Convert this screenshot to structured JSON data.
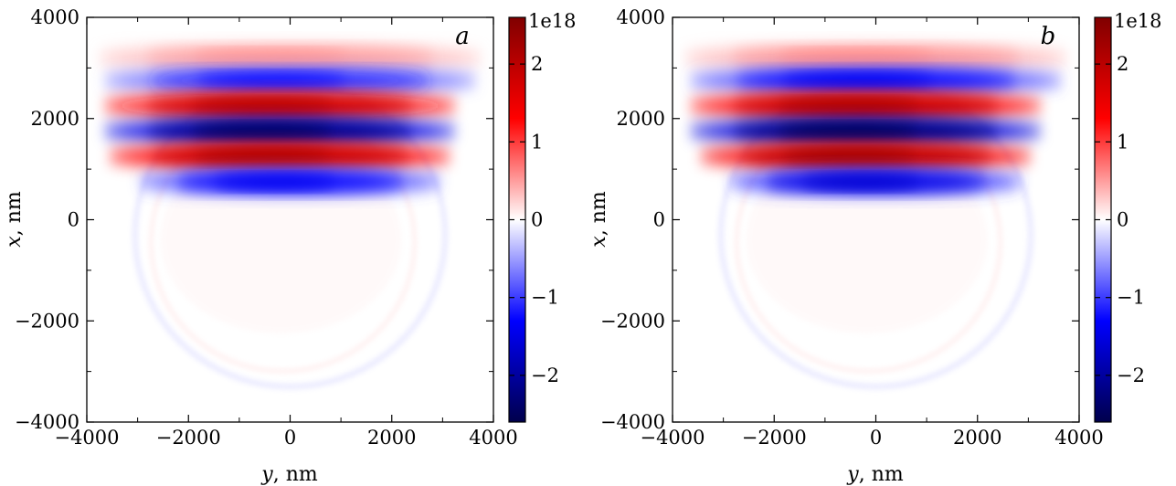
{
  "chart_data": [
    {
      "type": "heatmap",
      "panel_label": "a",
      "xlabel_var": "y",
      "xlabel_unit": ", nm",
      "ylabel_var": "x",
      "ylabel_unit": ", nm",
      "xlim": [
        -4000,
        4000
      ],
      "ylim": [
        -4000,
        4000
      ],
      "x_ticks": [
        -4000,
        -2000,
        0,
        2000,
        4000
      ],
      "y_ticks": [
        -4000,
        -2000,
        0,
        2000,
        4000
      ],
      "x_tick_labels": [
        "−4000",
        "−2000",
        "0",
        "2000",
        "4000"
      ],
      "y_tick_labels": [
        "−4000",
        "−2000",
        "0",
        "2000",
        "4000"
      ],
      "colormap": "seismic",
      "colorbar": {
        "multiplier_label": "1e18",
        "range": [
          -2.6,
          2.6
        ],
        "ticks": [
          -2,
          -1,
          0,
          1,
          2
        ],
        "tick_labels": [
          "−2",
          "−1",
          "0",
          "1",
          "2"
        ]
      },
      "bands": [
        {
          "x": 3200,
          "amplitude": 0.5,
          "y_center": 0,
          "half_width": 3800
        },
        {
          "x": 2750,
          "amplitude": -1.1,
          "y_center": 0,
          "half_width": 3700
        },
        {
          "x": 2250,
          "amplitude": 1.9,
          "y_center": -200,
          "half_width": 3500
        },
        {
          "x": 1750,
          "amplitude": -2.3,
          "y_center": -200,
          "half_width": 3500
        },
        {
          "x": 1250,
          "amplitude": 2.0,
          "y_center": -200,
          "half_width": 3400
        },
        {
          "x": 750,
          "amplitude": -1.3,
          "y_center": 0,
          "half_width": 3000
        }
      ],
      "ring": {
        "y_center": 0,
        "x_center": -300,
        "radius_y": 3050,
        "radius_x": 3000,
        "amplitude": 0.15
      }
    },
    {
      "type": "heatmap",
      "panel_label": "b",
      "xlabel_var": "y",
      "xlabel_unit": ", nm",
      "ylabel_var": "x",
      "ylabel_unit": ", nm",
      "xlim": [
        -4000,
        4000
      ],
      "ylim": [
        -4000,
        4000
      ],
      "x_ticks": [
        -4000,
        -2000,
        0,
        2000,
        4000
      ],
      "y_ticks": [
        -4000,
        -2000,
        0,
        2000,
        4000
      ],
      "x_tick_labels": [
        "−4000",
        "−2000",
        "0",
        "2000",
        "4000"
      ],
      "y_tick_labels": [
        "−4000",
        "−2000",
        "0",
        "2000",
        "4000"
      ],
      "colormap": "seismic",
      "colorbar": {
        "multiplier_label": "1e18",
        "range": [
          -2.6,
          2.6
        ],
        "ticks": [
          -2,
          -1,
          0,
          1,
          2
        ],
        "tick_labels": [
          "−2",
          "−1",
          "0",
          "1",
          "2"
        ]
      },
      "bands": [
        {
          "x": 3200,
          "amplitude": 0.55,
          "y_center": 0,
          "half_width": 3800
        },
        {
          "x": 2750,
          "amplitude": -1.3,
          "y_center": 0,
          "half_width": 3700
        },
        {
          "x": 2250,
          "amplitude": 2.0,
          "y_center": -200,
          "half_width": 3500
        },
        {
          "x": 1750,
          "amplitude": -2.4,
          "y_center": -200,
          "half_width": 3500
        },
        {
          "x": 1250,
          "amplitude": 2.1,
          "y_center": -200,
          "half_width": 3300
        },
        {
          "x": 750,
          "amplitude": -1.5,
          "y_center": 0,
          "half_width": 2900
        }
      ],
      "ring": {
        "y_center": 0,
        "x_center": -300,
        "radius_y": 3050,
        "radius_x": 3000,
        "amplitude": 0.15
      }
    }
  ]
}
